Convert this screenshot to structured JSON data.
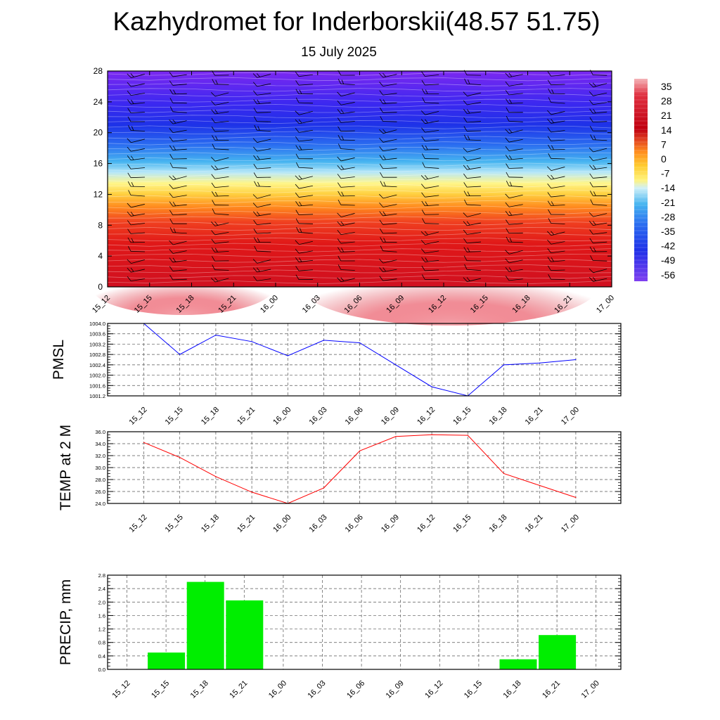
{
  "title": "Kazhydromet for Inderborskii(48.57 51.75)",
  "subtitle": "15 July 2025",
  "time_labels": [
    "15_12",
    "15_15",
    "15_18",
    "15_21",
    "16_00",
    "16_03",
    "16_06",
    "16_09",
    "16_12",
    "16_15",
    "16_18",
    "16_21",
    "17_00"
  ],
  "chart_data": [
    {
      "type": "heatmap",
      "yticks": [
        0,
        4,
        8,
        12,
        16,
        20,
        24,
        28
      ],
      "ylim": [
        0,
        28
      ],
      "colorbar_labels": [
        "35",
        "28",
        "21",
        "14",
        "7",
        "0",
        "-7",
        "-14",
        "-21",
        "-28",
        "-35",
        "-42",
        "-49",
        "-56"
      ],
      "color_range": [
        -60,
        38
      ],
      "wind_barbs": true,
      "colors": {
        "hot": "#c8001e",
        "warm": "#ff9a1e",
        "neutral": "#fff27a",
        "cool": "#46b4f0",
        "cold": "#1e3cf0",
        "coldest": "#7828f0"
      }
    },
    {
      "type": "line",
      "ylabel": "PMSL",
      "x": [
        "15_12",
        "15_15",
        "15_18",
        "15_21",
        "16_00",
        "16_03",
        "16_06",
        "16_09",
        "16_12",
        "16_15",
        "16_18",
        "16_21",
        "17_00"
      ],
      "values": [
        1004.0,
        1002.8,
        1003.55,
        1003.3,
        1002.75,
        1003.35,
        1003.25,
        1002.4,
        1001.55,
        1001.2,
        1002.4,
        1002.47,
        1002.6
      ],
      "ylim": [
        1001.2,
        1004.0
      ],
      "yticks": [
        "1004.0",
        "1003.6",
        "1003.2",
        "1002.8",
        "1002.4",
        "1002.0",
        "1001.6",
        "1001.2"
      ],
      "color": "#0000ff",
      "grid": true
    },
    {
      "type": "line",
      "ylabel": "TEMP at 2 M",
      "x": [
        "15_12",
        "15_15",
        "15_18",
        "15_21",
        "16_00",
        "16_03",
        "16_06",
        "16_09",
        "16_12",
        "16_15",
        "16_18",
        "16_21",
        "17_00"
      ],
      "values": [
        34.2,
        31.7,
        28.5,
        25.9,
        24.0,
        26.6,
        32.8,
        35.2,
        35.5,
        35.4,
        29.0,
        27.0,
        25.0
      ],
      "ylim": [
        24.0,
        36.0
      ],
      "yticks": [
        "36.0",
        "34.0",
        "32.0",
        "30.0",
        "28.0",
        "26.0",
        "24.0"
      ],
      "color": "#ff0000",
      "grid": true
    },
    {
      "type": "bar",
      "ylabel": "PRECIP, mm",
      "categories": [
        "15_12",
        "15_15",
        "15_18",
        "15_21",
        "16_00",
        "16_03",
        "16_06",
        "16_09",
        "16_12",
        "16_15",
        "16_18",
        "16_21",
        "17_00"
      ],
      "values": [
        0,
        0.5,
        2.6,
        2.05,
        0,
        0,
        0,
        0,
        0,
        0,
        0.3,
        1.02,
        0
      ],
      "ylim": [
        0,
        2.8
      ],
      "yticks": [
        "2.8",
        "2.4",
        "2.0",
        "1.6",
        "1.2",
        "0.8",
        "0.4",
        "0.0"
      ],
      "color": "#00ee00",
      "grid": true
    }
  ]
}
